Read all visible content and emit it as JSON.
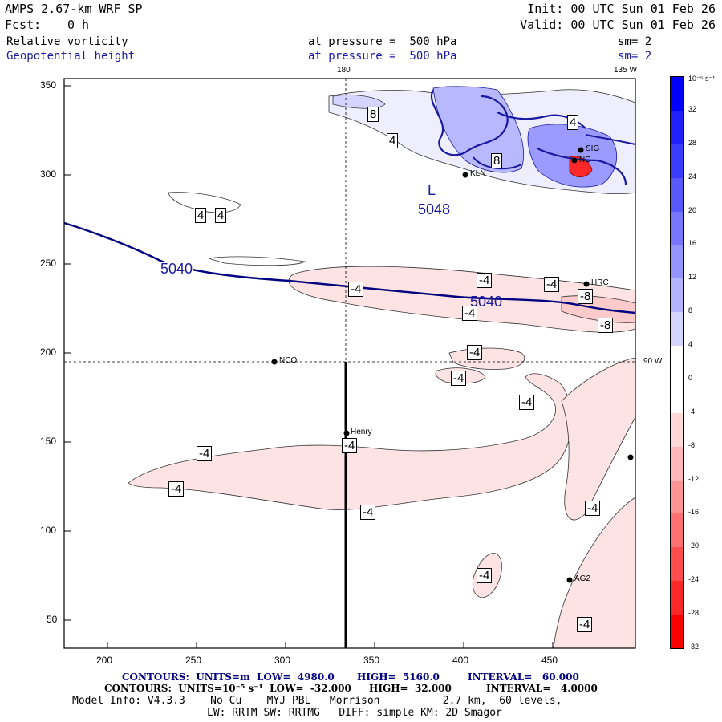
{
  "header": {
    "model": "AMPS 2.67-km WRF SP",
    "forecast_label": "Fcst:",
    "forecast_value": "0 h",
    "init": "Init: 00 UTC Sun 01 Feb 26",
    "valid": "Valid: 00 UTC Sun 01 Feb 26",
    "field1": "Relative vorticity",
    "field1_level": "at pressure =  500 hPa",
    "field1_sm": "sm= 2",
    "field2": "Geopotential height",
    "field2_level": "at pressure =  500 hPa",
    "field2_sm": "sm= 2"
  },
  "map": {
    "lon_top_label": "180",
    "lon_right_top_label": "135 W",
    "lon_right_mid_label": "90 W",
    "low_center": "L",
    "low_value": "5048",
    "height_labels": [
      "5040",
      "5040"
    ],
    "stations": [
      "KLN",
      "HRC",
      "NCO",
      "Henry",
      "AG2",
      "SIG",
      "NC"
    ],
    "x_ticks": [
      "200",
      "250",
      "300",
      "350",
      "400",
      "450"
    ],
    "y_ticks": [
      "350",
      "300",
      "250",
      "200",
      "150",
      "100",
      "50"
    ],
    "vort_labels": [
      "4",
      "4",
      "4",
      "8",
      "8",
      "4",
      "-4",
      "-4",
      "-4",
      "-8",
      "-8",
      "-4",
      "-4",
      "-4",
      "-4",
      "-4",
      "-4",
      "-4",
      "-4",
      "-4",
      "-4",
      "-4"
    ]
  },
  "colorbar": {
    "unit": "10⁻⁵ s⁻¹",
    "labels": [
      "32",
      "28",
      "24",
      "20",
      "16",
      "12",
      "8",
      "4",
      "0",
      "-4",
      "-8",
      "-12",
      "-16",
      "-20",
      "-24",
      "-28",
      "-32"
    ],
    "colors": [
      "#0000ff",
      "#1f1fff",
      "#3b3bff",
      "#5858ff",
      "#7676ff",
      "#9494ff",
      "#b3b3ff",
      "#d4d4ff",
      "#ffffff",
      "#ffffff",
      "#ffd8d8",
      "#ffb6b6",
      "#ff9494",
      "#ff7070",
      "#ff4c4c",
      "#ff2828",
      "#ff0000"
    ]
  },
  "footer": {
    "line1_a": "CONTOURS:  UNITS=m  LOW=  4980.0",
    "line1_b": "HIGH=  5160.0",
    "line1_c": "INTERVAL=   60.000",
    "line2_a": "CONTOURS:  UNITS=10⁻⁵ s⁻¹  LOW=  -32.000",
    "line2_b": "HIGH=  32.000",
    "line2_c": "INTERVAL=   4.0000",
    "line3": "Model Info: V4.3.3    No Cu    MYJ PBL   Morrison          2.7 km,  60 levels,",
    "line4": "LW: RRTM SW: RRTMG   DIFF: simple KM: 2D Smagor"
  }
}
